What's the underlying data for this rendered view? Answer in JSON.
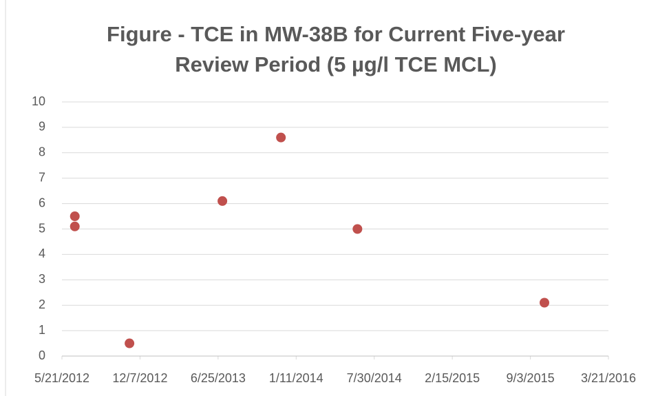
{
  "chart_data": {
    "type": "scatter",
    "title": "Figure - TCE in MW-38B for Current Five-year Review Period (5 µg/l TCE MCL)",
    "x": [
      "6/23/2012",
      "6/23/2012",
      "11/10/2012",
      "7/6/2013",
      "12/3/2013",
      "6/17/2014",
      "10/9/2015"
    ],
    "values": [
      5.5,
      5.1,
      0.5,
      6.1,
      8.6,
      5.0,
      2.1
    ],
    "color": "#c0504d",
    "xlim": [
      "5/21/2012",
      "3/21/2016"
    ],
    "xticks": [
      "5/21/2012",
      "12/7/2012",
      "6/25/2013",
      "1/11/2014",
      "7/30/2014",
      "2/15/2015",
      "9/3/2015",
      "3/21/2016"
    ],
    "ylim": [
      0,
      10
    ],
    "yticks": [
      0,
      1,
      2,
      3,
      4,
      5,
      6,
      7,
      8,
      9,
      10
    ],
    "grid": true
  }
}
